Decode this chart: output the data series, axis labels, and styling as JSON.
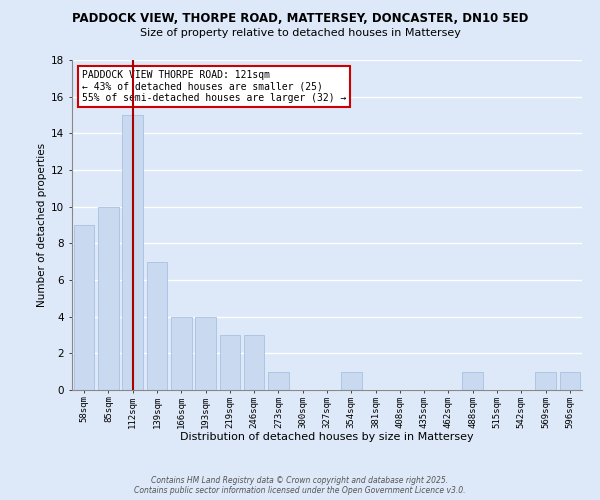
{
  "title": "PADDOCK VIEW, THORPE ROAD, MATTERSEY, DONCASTER, DN10 5ED",
  "subtitle": "Size of property relative to detached houses in Mattersey",
  "xlabel": "Distribution of detached houses by size in Mattersey",
  "ylabel": "Number of detached properties",
  "bar_color": "#c8d9f0",
  "bar_edge_color": "#a8c0e0",
  "background_color": "#dde8f8",
  "grid_color": "#ffffff",
  "categories": [
    "58sqm",
    "85sqm",
    "112sqm",
    "139sqm",
    "166sqm",
    "193sqm",
    "219sqm",
    "246sqm",
    "273sqm",
    "300sqm",
    "327sqm",
    "354sqm",
    "381sqm",
    "408sqm",
    "435sqm",
    "462sqm",
    "488sqm",
    "515sqm",
    "542sqm",
    "569sqm",
    "596sqm"
  ],
  "values": [
    9,
    10,
    15,
    7,
    4,
    4,
    3,
    3,
    1,
    0,
    0,
    1,
    0,
    0,
    0,
    0,
    1,
    0,
    0,
    1,
    1
  ],
  "ylim": [
    0,
    18
  ],
  "yticks": [
    0,
    2,
    4,
    6,
    8,
    10,
    12,
    14,
    16,
    18
  ],
  "vline_x": 2,
  "vline_color": "#aa0000",
  "annotation_title": "PADDOCK VIEW THORPE ROAD: 121sqm",
  "annotation_line1": "← 43% of detached houses are smaller (25)",
  "annotation_line2": "55% of semi-detached houses are larger (32) →",
  "annotation_box_color": "#ffffff",
  "annotation_box_edge": "#cc0000",
  "footer1": "Contains HM Land Registry data © Crown copyright and database right 2025.",
  "footer2": "Contains public sector information licensed under the Open Government Licence v3.0."
}
